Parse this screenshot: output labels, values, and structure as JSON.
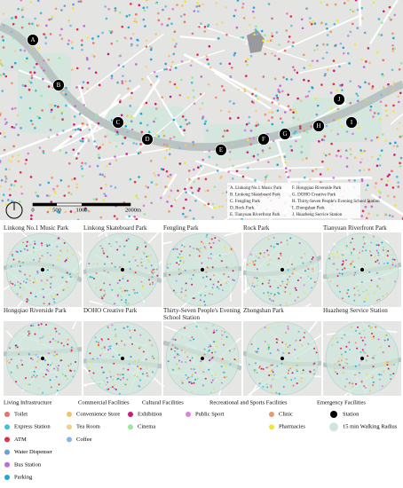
{
  "map": {
    "stations": [
      "A",
      "B",
      "C",
      "D",
      "E",
      "F",
      "G",
      "H",
      "I",
      "J"
    ],
    "key": [
      "A. Linkong No.1 Music Park",
      "B. Linkong Skateboard Park",
      "C. Fengling Park",
      "D. Rock Park",
      "E. Tianyuan Riverfront Park",
      "F. Hongqiao Riverside Park",
      "G. DOHO Creative Park",
      "H. Thirty-Seven People's Evening School Station",
      "I. Zhongshan Park",
      "J. Huazheng Service Station"
    ]
  },
  "scale_bar": {
    "labels": [
      "0",
      "500",
      "1000",
      "2000m"
    ]
  },
  "panels": [
    "Linkong No.1 Music Park",
    "Linkong Skateboard Park",
    "Fengling Park",
    "Rock Park",
    "Tianyuan Riverfront Park",
    "Hongqiao Riverside Park",
    "DOHO Creative Park",
    "Thirty-Seven People's Evening School Station",
    "Zhongshan Park",
    "Huazheng Service Station"
  ],
  "legend": {
    "groups": [
      {
        "title": "Living Infrastructure",
        "items": [
          {
            "label": "Toilet",
            "color": "#e8716b"
          },
          {
            "label": "Express Station",
            "color": "#3cc4d8"
          },
          {
            "label": "ATM",
            "color": "#e0304a"
          },
          {
            "label": "Water Dispenser",
            "color": "#6aa0d8"
          },
          {
            "label": "Bus Station",
            "color": "#c06adb"
          },
          {
            "label": "Parking",
            "color": "#1ca8d8"
          }
        ]
      },
      {
        "title": "Commercial Facilities",
        "items": [
          {
            "label": "Convenience Store",
            "color": "#f2c46a"
          },
          {
            "label": "Tea Room",
            "color": "#f5d08a"
          },
          {
            "label": "Coffee",
            "color": "#7fb9ea"
          }
        ]
      },
      {
        "title": "Cultural Facilities",
        "items": [
          {
            "label": "Exhibition",
            "color": "#d1167a"
          },
          {
            "label": "Cinema",
            "color": "#9ae89a"
          }
        ]
      },
      {
        "title": "Recreational and Sports Facilities",
        "items": [
          {
            "label": "Public Sport",
            "color": "#e47fd6"
          }
        ]
      },
      {
        "title": "Emergency Facilities",
        "items": [
          {
            "label": "Clinic",
            "color": "#e79a6e"
          },
          {
            "label": "Pharmacies",
            "color": "#f0e830"
          }
        ]
      }
    ],
    "extra": [
      {
        "label": "Station",
        "color": "#000000"
      },
      {
        "label": "15 min Walking Radius",
        "color": "#cfe6dc"
      }
    ]
  }
}
